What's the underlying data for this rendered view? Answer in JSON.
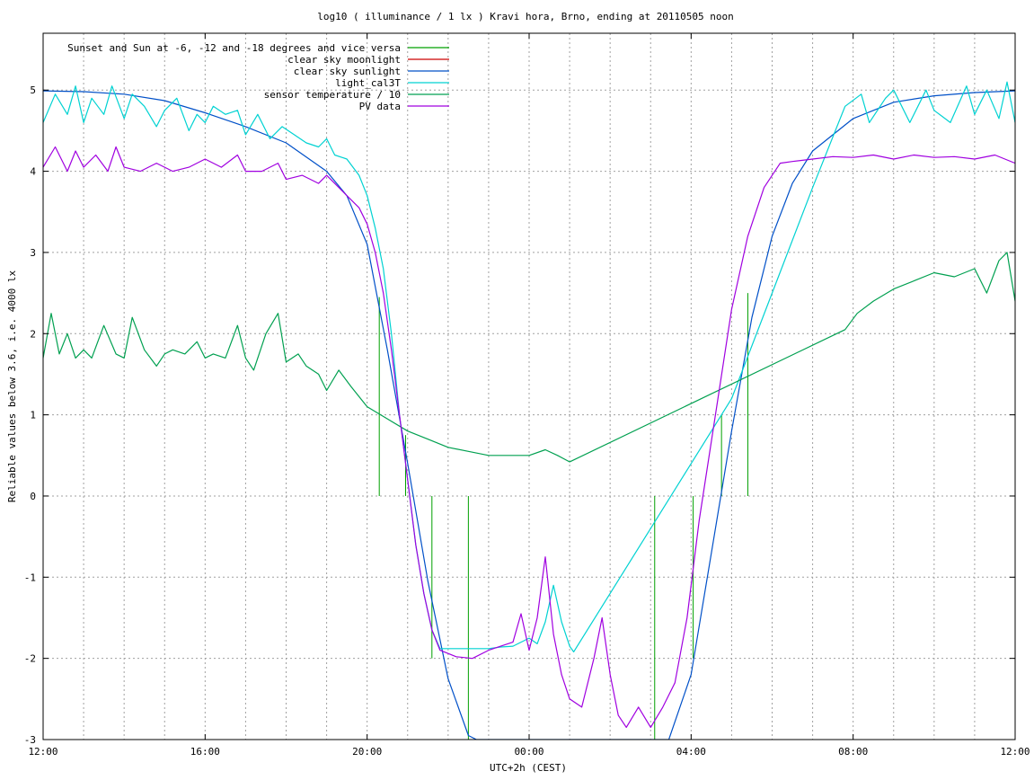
{
  "chart_data": {
    "type": "line",
    "title": "log10 ( illuminance / 1 lx ) Kravi hora, Brno, ending at 20110505 noon",
    "xlabel": "UTC+2h (CEST)",
    "ylabel": "Reliable values below 3.6, i.e. 4000 lx",
    "xlim": [
      0,
      24
    ],
    "ylim": [
      -3,
      5.7
    ],
    "x_ticks": [
      {
        "x": 0,
        "label": "12:00"
      },
      {
        "x": 4,
        "label": "16:00"
      },
      {
        "x": 8,
        "label": "20:00"
      },
      {
        "x": 12,
        "label": "00:00"
      },
      {
        "x": 16,
        "label": "04:00"
      },
      {
        "x": 20,
        "label": "08:00"
      },
      {
        "x": 24,
        "label": "12:00"
      }
    ],
    "y_ticks": [
      {
        "y": -3,
        "label": "-3"
      },
      {
        "y": -2,
        "label": "-2"
      },
      {
        "y": -1,
        "label": "-1"
      },
      {
        "y": 0,
        "label": "0"
      },
      {
        "y": 1,
        "label": "1"
      },
      {
        "y": 2,
        "label": "2"
      },
      {
        "y": 3,
        "label": "3"
      },
      {
        "y": 4,
        "label": "4"
      },
      {
        "y": 5,
        "label": "5"
      }
    ],
    "grid": true,
    "legend": "top-left",
    "series": [
      {
        "name": "Sunset and Sun at -6, -12 and -18 degrees and vice versa",
        "color": "#00a000",
        "style": "vertical-markers",
        "markers": [
          {
            "x": 8.3,
            "y0": 0,
            "y1": 2.45
          },
          {
            "x": 8.95,
            "y0": 0,
            "y1": 0.75
          },
          {
            "x": 9.6,
            "y0": 0,
            "y1": -2.0
          },
          {
            "x": 10.5,
            "y0": 0,
            "y1": -3.0
          },
          {
            "x": 15.1,
            "y0": 0,
            "y1": -3.0
          },
          {
            "x": 16.05,
            "y0": 0,
            "y1": -2.0
          },
          {
            "x": 16.75,
            "y0": 0,
            "y1": 1.0
          },
          {
            "x": 17.4,
            "y0": 0,
            "y1": 2.5
          }
        ]
      },
      {
        "name": "clear sky moonlight",
        "color": "#cc0000",
        "x": [],
        "y": []
      },
      {
        "name": "clear sky sunlight",
        "color": "#0050c8",
        "x": [
          0,
          1,
          2,
          3,
          4,
          5,
          6,
          7,
          7.5,
          8,
          8.5,
          9,
          9.5,
          10,
          10.5,
          10.7,
          15.45,
          16,
          16.5,
          17,
          17.5,
          18,
          18.5,
          19,
          20,
          21,
          22,
          23,
          24
        ],
        "y": [
          4.99,
          4.98,
          4.95,
          4.87,
          4.72,
          4.55,
          4.35,
          4.0,
          3.7,
          3.1,
          1.8,
          0.4,
          -1.05,
          -2.25,
          -2.95,
          -3.0,
          -3.0,
          -2.2,
          -0.7,
          0.8,
          2.2,
          3.2,
          3.85,
          4.25,
          4.65,
          4.85,
          4.93,
          4.97,
          4.99
        ]
      },
      {
        "name": "light_cal3T",
        "color": "#00d2d2",
        "x": [
          0,
          0.3,
          0.6,
          0.8,
          1,
          1.2,
          1.5,
          1.7,
          2,
          2.2,
          2.5,
          2.8,
          3,
          3.3,
          3.6,
          3.8,
          4,
          4.2,
          4.5,
          4.8,
          5,
          5.3,
          5.6,
          5.9,
          6.2,
          6.5,
          6.8,
          7,
          7.2,
          7.5,
          7.8,
          8,
          8.2,
          8.4,
          8.6,
          8.8,
          9,
          9.2,
          9.4,
          9.6,
          9.8,
          10.5,
          11,
          11.3,
          11.6,
          11.8,
          12,
          12.2,
          12.4,
          12.6,
          12.8,
          13,
          13.1,
          17,
          18,
          19,
          19.8,
          20.2,
          20.4,
          20.8,
          21,
          21.4,
          21.8,
          22,
          22.4,
          22.8,
          23,
          23.3,
          23.6,
          23.8,
          24
        ],
        "y": [
          4.6,
          4.95,
          4.7,
          5.05,
          4.6,
          4.9,
          4.7,
          5.05,
          4.65,
          4.95,
          4.8,
          4.55,
          4.75,
          4.9,
          4.5,
          4.7,
          4.6,
          4.8,
          4.7,
          4.75,
          4.45,
          4.7,
          4.4,
          4.55,
          4.45,
          4.35,
          4.3,
          4.4,
          4.2,
          4.15,
          3.95,
          3.7,
          3.3,
          2.8,
          2.0,
          1.0,
          0.2,
          -0.6,
          -1.2,
          -1.65,
          -1.88,
          -1.88,
          -1.88,
          -1.86,
          -1.85,
          -1.8,
          -1.75,
          -1.82,
          -1.55,
          -1.1,
          -1.55,
          -1.85,
          -1.92,
          1.2,
          2.5,
          3.8,
          4.8,
          4.95,
          4.6,
          4.9,
          5.0,
          4.6,
          5.0,
          4.75,
          4.6,
          5.05,
          4.7,
          5.0,
          4.65,
          5.1,
          4.6
        ]
      },
      {
        "name": "sensor temperature / 10",
        "color": "#00a050",
        "x": [
          0,
          0.2,
          0.4,
          0.6,
          0.8,
          1,
          1.2,
          1.5,
          1.8,
          2,
          2.2,
          2.5,
          2.8,
          3,
          3.2,
          3.5,
          3.8,
          4,
          4.2,
          4.5,
          4.8,
          5,
          5.2,
          5.5,
          5.8,
          6,
          6.3,
          6.5,
          6.8,
          7,
          7.3,
          7.6,
          8,
          8.5,
          9,
          9.5,
          10,
          10.5,
          11,
          11.5,
          12,
          12.4,
          12.7,
          13,
          19.8,
          20.1,
          20.5,
          21,
          21.5,
          22,
          22.5,
          23,
          23.3,
          23.6,
          23.8,
          24
        ],
        "y": [
          1.7,
          2.25,
          1.75,
          2.0,
          1.7,
          1.8,
          1.7,
          2.1,
          1.75,
          1.7,
          2.2,
          1.8,
          1.6,
          1.75,
          1.8,
          1.75,
          1.9,
          1.7,
          1.75,
          1.7,
          2.1,
          1.7,
          1.55,
          2.0,
          2.25,
          1.65,
          1.75,
          1.6,
          1.5,
          1.3,
          1.55,
          1.35,
          1.1,
          0.95,
          0.8,
          0.7,
          0.6,
          0.55,
          0.5,
          0.5,
          0.5,
          0.57,
          0.5,
          0.42,
          2.05,
          2.25,
          2.4,
          2.55,
          2.65,
          2.75,
          2.7,
          2.8,
          2.5,
          2.9,
          3.0,
          2.4
        ]
      },
      {
        "name": "PV data",
        "color": "#a000e0",
        "x": [
          0,
          0.3,
          0.6,
          0.8,
          1,
          1.3,
          1.6,
          1.8,
          2,
          2.4,
          2.8,
          3.2,
          3.6,
          4,
          4.4,
          4.8,
          5,
          5.4,
          5.8,
          6,
          6.4,
          6.8,
          7,
          7.2,
          7.5,
          7.8,
          8,
          8.2,
          8.4,
          8.6,
          8.8,
          9,
          9.2,
          9.4,
          9.6,
          9.8,
          10.2,
          10.6,
          11,
          11.3,
          11.6,
          11.8,
          12,
          12.2,
          12.4,
          12.6,
          12.8,
          13,
          13.3,
          13.6,
          13.8,
          14,
          14.2,
          14.4,
          14.7,
          15,
          15.3,
          15.6,
          15.9,
          16.2,
          16.6,
          17,
          17.4,
          17.8,
          18.2,
          18.5,
          19,
          19.5,
          20,
          20.5,
          21,
          21.5,
          22,
          22.5,
          23,
          23.5,
          24
        ],
        "y": [
          4.05,
          4.3,
          4.0,
          4.25,
          4.05,
          4.2,
          4.0,
          4.3,
          4.05,
          4.0,
          4.1,
          4.0,
          4.05,
          4.15,
          4.05,
          4.2,
          4.0,
          4.0,
          4.1,
          3.9,
          3.95,
          3.85,
          3.95,
          3.85,
          3.7,
          3.55,
          3.35,
          3.0,
          2.5,
          1.8,
          1.0,
          0.2,
          -0.6,
          -1.2,
          -1.65,
          -1.9,
          -1.98,
          -2.0,
          -1.9,
          -1.85,
          -1.8,
          -1.45,
          -1.9,
          -1.5,
          -0.75,
          -1.7,
          -2.2,
          -2.5,
          -2.6,
          -2.0,
          -1.5,
          -2.2,
          -2.7,
          -2.85,
          -2.6,
          -2.85,
          -2.6,
          -2.3,
          -1.5,
          -0.3,
          1.0,
          2.3,
          3.2,
          3.8,
          4.1,
          4.12,
          4.15,
          4.18,
          4.17,
          4.2,
          4.15,
          4.2,
          4.17,
          4.18,
          4.15,
          4.2,
          4.1
        ]
      }
    ]
  }
}
